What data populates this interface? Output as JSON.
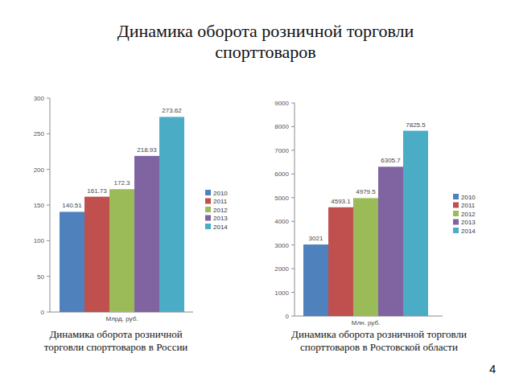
{
  "slide": {
    "title": "Динамика оборота розничной торговли спорттоваров",
    "page": 4
  },
  "chart_data": [
    {
      "type": "bar",
      "title": "Динамика оборота розничной торговли спорттоваров в России",
      "categories": [
        "Млрд. руб."
      ],
      "series": [
        {
          "name": "2010",
          "color": "#4f81bd",
          "values": [
            140.51
          ]
        },
        {
          "name": "2011",
          "color": "#c0504d",
          "values": [
            161.73
          ]
        },
        {
          "name": "2012",
          "color": "#9bbb59",
          "values": [
            172.3
          ]
        },
        {
          "name": "2013",
          "color": "#8064a2",
          "values": [
            218.93
          ]
        },
        {
          "name": "2014",
          "color": "#4bacc6",
          "values": [
            273.62
          ]
        }
      ],
      "ylim": [
        0,
        300
      ],
      "yticks": [
        0,
        50,
        100,
        150,
        200,
        250,
        300
      ],
      "grid": false,
      "legend": "right",
      "data_labels": true
    },
    {
      "type": "bar",
      "title": "Динамика оборота розничной торговли спорттоваров в Ростовской области",
      "categories": [
        "Млн. руб."
      ],
      "series": [
        {
          "name": "2010",
          "color": "#4f81bd",
          "values": [
            3021
          ]
        },
        {
          "name": "2011",
          "color": "#c0504d",
          "values": [
            4593.1
          ]
        },
        {
          "name": "2012",
          "color": "#9bbb59",
          "values": [
            4979.5
          ]
        },
        {
          "name": "2013",
          "color": "#8064a2",
          "values": [
            6305.7
          ]
        },
        {
          "name": "2014",
          "color": "#4bacc6",
          "values": [
            7825.5
          ]
        }
      ],
      "ylim": [
        0,
        9000
      ],
      "yticks": [
        0,
        1000,
        2000,
        3000,
        4000,
        5000,
        6000,
        7000,
        8000,
        9000
      ],
      "grid": false,
      "legend": "right",
      "data_labels": true
    }
  ]
}
